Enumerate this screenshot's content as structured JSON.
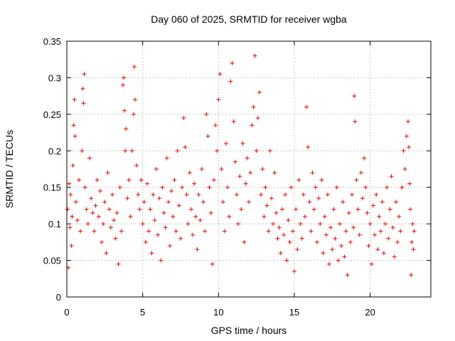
{
  "chart_data": {
    "type": "scatter",
    "title": "Day 060 of 2025, SRMTID for receiver wgba",
    "xlabel": "GPS time / hours",
    "ylabel": "SRMTID / TECUs",
    "xlim": [
      0,
      24
    ],
    "ylim": [
      0,
      0.35
    ],
    "x_ticks": [
      0,
      5,
      10,
      15,
      20
    ],
    "x_tick_labels": [
      "0",
      "5",
      "10",
      "15",
      "20"
    ],
    "y_ticks": [
      0,
      0.05,
      0.1,
      0.15,
      0.2,
      0.25,
      0.3,
      0.35
    ],
    "y_tick_labels": [
      "0",
      "0.05",
      "0.1",
      "0.15",
      "0.2",
      "0.25",
      "0.3",
      "0.35"
    ],
    "grid": true,
    "marker": "+",
    "color": "#ff0000",
    "series": [
      {
        "name": "SRMTID",
        "points": [
          [
            0.05,
            0.12
          ],
          [
            0.1,
            0.04
          ],
          [
            0.15,
            0.155
          ],
          [
            0.2,
            0.095
          ],
          [
            0.25,
            0.14
          ],
          [
            0.3,
            0.07
          ],
          [
            0.35,
            0.11
          ],
          [
            0.4,
            0.18
          ],
          [
            0.45,
            0.235
          ],
          [
            0.5,
            0.27
          ],
          [
            0.55,
            0.22
          ],
          [
            0.6,
            0.13
          ],
          [
            0.7,
            0.105
          ],
          [
            0.8,
            0.16
          ],
          [
            0.9,
            0.09
          ],
          [
            1.0,
            0.2
          ],
          [
            1.05,
            0.285
          ],
          [
            1.1,
            0.265
          ],
          [
            1.15,
            0.305
          ],
          [
            1.2,
            0.15
          ],
          [
            1.3,
            0.12
          ],
          [
            1.4,
            0.1
          ],
          [
            1.5,
            0.19
          ],
          [
            1.6,
            0.135
          ],
          [
            1.7,
            0.115
          ],
          [
            1.8,
            0.09
          ],
          [
            1.9,
            0.125
          ],
          [
            2.0,
            0.16
          ],
          [
            2.1,
            0.11
          ],
          [
            2.2,
            0.145
          ],
          [
            2.3,
            0.075
          ],
          [
            2.4,
            0.1
          ],
          [
            2.5,
            0.13
          ],
          [
            2.6,
            0.06
          ],
          [
            2.7,
            0.17
          ],
          [
            2.8,
            0.12
          ],
          [
            2.9,
            0.095
          ],
          [
            3.0,
            0.14
          ],
          [
            3.1,
            0.105
          ],
          [
            3.2,
            0.08
          ],
          [
            3.3,
            0.115
          ],
          [
            3.4,
            0.045
          ],
          [
            3.5,
            0.15
          ],
          [
            3.6,
            0.09
          ],
          [
            3.7,
            0.29
          ],
          [
            3.75,
            0.3
          ],
          [
            3.8,
            0.255
          ],
          [
            3.85,
            0.2
          ],
          [
            3.9,
            0.23
          ],
          [
            4.0,
            0.135
          ],
          [
            4.1,
            0.16
          ],
          [
            4.2,
            0.11
          ],
          [
            4.3,
            0.2
          ],
          [
            4.4,
            0.25
          ],
          [
            4.45,
            0.315
          ],
          [
            4.5,
            0.27
          ],
          [
            4.6,
            0.18
          ],
          [
            4.7,
            0.14
          ],
          [
            4.8,
            0.12
          ],
          [
            4.9,
            0.16
          ],
          [
            5.0,
            0.1
          ],
          [
            5.1,
            0.13
          ],
          [
            5.2,
            0.075
          ],
          [
            5.3,
            0.155
          ],
          [
            5.4,
            0.09
          ],
          [
            5.5,
            0.12
          ],
          [
            5.6,
            0.06
          ],
          [
            5.7,
            0.14
          ],
          [
            5.8,
            0.105
          ],
          [
            5.9,
            0.175
          ],
          [
            6.0,
            0.085
          ],
          [
            6.1,
            0.135
          ],
          [
            6.2,
            0.05
          ],
          [
            6.3,
            0.15
          ],
          [
            6.4,
            0.115
          ],
          [
            6.5,
            0.095
          ],
          [
            6.6,
            0.19
          ],
          [
            6.7,
            0.13
          ],
          [
            6.8,
            0.07
          ],
          [
            6.9,
            0.145
          ],
          [
            7.0,
            0.11
          ],
          [
            7.1,
            0.16
          ],
          [
            7.2,
            0.09
          ],
          [
            7.3,
            0.2
          ],
          [
            7.4,
            0.125
          ],
          [
            7.5,
            0.08
          ],
          [
            7.6,
            0.15
          ],
          [
            7.7,
            0.245
          ],
          [
            7.8,
            0.205
          ],
          [
            7.9,
            0.14
          ],
          [
            8.0,
            0.1
          ],
          [
            8.1,
            0.17
          ],
          [
            8.2,
            0.12
          ],
          [
            8.3,
            0.085
          ],
          [
            8.4,
            0.155
          ],
          [
            8.5,
            0.11
          ],
          [
            8.6,
            0.065
          ],
          [
            8.7,
            0.14
          ],
          [
            8.8,
            0.105
          ],
          [
            8.9,
            0.175
          ],
          [
            9.0,
            0.13
          ],
          [
            9.1,
            0.09
          ],
          [
            9.2,
            0.25
          ],
          [
            9.3,
            0.22
          ],
          [
            9.4,
            0.15
          ],
          [
            9.5,
            0.115
          ],
          [
            9.6,
            0.045
          ],
          [
            9.7,
            0.16
          ],
          [
            9.8,
            0.235
          ],
          [
            9.9,
            0.2
          ],
          [
            10.0,
            0.27
          ],
          [
            10.1,
            0.305
          ],
          [
            10.2,
            0.175
          ],
          [
            10.3,
            0.13
          ],
          [
            10.4,
            0.09
          ],
          [
            10.5,
            0.21
          ],
          [
            10.6,
            0.15
          ],
          [
            10.7,
            0.11
          ],
          [
            10.8,
            0.295
          ],
          [
            10.9,
            0.32
          ],
          [
            11.0,
            0.24
          ],
          [
            11.1,
            0.185
          ],
          [
            11.2,
            0.14
          ],
          [
            11.3,
            0.1
          ],
          [
            11.4,
            0.165
          ],
          [
            11.5,
            0.12
          ],
          [
            11.6,
            0.21
          ],
          [
            11.7,
            0.075
          ],
          [
            11.8,
            0.155
          ],
          [
            11.9,
            0.19
          ],
          [
            12.0,
            0.13
          ],
          [
            12.1,
            0.17
          ],
          [
            12.2,
            0.235
          ],
          [
            12.3,
            0.26
          ],
          [
            12.4,
            0.33
          ],
          [
            12.5,
            0.2
          ],
          [
            12.6,
            0.245
          ],
          [
            12.7,
            0.28
          ],
          [
            12.8,
            0.14
          ],
          [
            12.9,
            0.175
          ],
          [
            13.0,
            0.11
          ],
          [
            13.1,
            0.15
          ],
          [
            13.2,
            0.125
          ],
          [
            13.3,
            0.09
          ],
          [
            13.4,
            0.2
          ],
          [
            13.5,
            0.135
          ],
          [
            13.6,
            0.1
          ],
          [
            13.7,
            0.17
          ],
          [
            13.8,
            0.115
          ],
          [
            13.9,
            0.08
          ],
          [
            14.0,
            0.095
          ],
          [
            14.1,
            0.06
          ],
          [
            14.2,
            0.12
          ],
          [
            14.3,
            0.085
          ],
          [
            14.4,
            0.14
          ],
          [
            14.5,
            0.05
          ],
          [
            14.6,
            0.105
          ],
          [
            14.7,
            0.075
          ],
          [
            14.8,
            0.15
          ],
          [
            14.9,
            0.09
          ],
          [
            15.0,
            0.035
          ],
          [
            15.1,
            0.12
          ],
          [
            15.2,
            0.065
          ],
          [
            15.3,
            0.16
          ],
          [
            15.4,
            0.1
          ],
          [
            15.5,
            0.08
          ],
          [
            15.6,
            0.14
          ],
          [
            15.7,
            0.11
          ],
          [
            15.8,
            0.26
          ],
          [
            15.9,
            0.205
          ],
          [
            16.0,
            0.13
          ],
          [
            16.1,
            0.09
          ],
          [
            16.2,
            0.17
          ],
          [
            16.3,
            0.12
          ],
          [
            16.4,
            0.15
          ],
          [
            16.5,
            0.075
          ],
          [
            16.6,
            0.135
          ],
          [
            16.7,
            0.1
          ],
          [
            16.8,
            0.16
          ],
          [
            16.9,
            0.06
          ],
          [
            17.0,
            0.11
          ],
          [
            17.1,
            0.085
          ],
          [
            17.2,
            0.14
          ],
          [
            17.3,
            0.045
          ],
          [
            17.4,
            0.095
          ],
          [
            17.5,
            0.065
          ],
          [
            17.6,
            0.12
          ],
          [
            17.7,
            0.08
          ],
          [
            17.8,
            0.15
          ],
          [
            17.9,
            0.05
          ],
          [
            18.0,
            0.1
          ],
          [
            18.1,
            0.07
          ],
          [
            18.2,
            0.13
          ],
          [
            18.3,
            0.055
          ],
          [
            18.4,
            0.09
          ],
          [
            18.5,
            0.03
          ],
          [
            18.6,
            0.115
          ],
          [
            18.7,
            0.075
          ],
          [
            18.8,
            0.14
          ],
          [
            18.9,
            0.095
          ],
          [
            18.95,
            0.275
          ],
          [
            19.0,
            0.24
          ],
          [
            19.1,
            0.16
          ],
          [
            19.2,
            0.12
          ],
          [
            19.3,
            0.085
          ],
          [
            19.4,
            0.17
          ],
          [
            19.5,
            0.135
          ],
          [
            19.6,
            0.19
          ],
          [
            19.7,
            0.15
          ],
          [
            19.8,
            0.115
          ],
          [
            19.9,
            0.07
          ],
          [
            20.0,
            0.1
          ],
          [
            20.1,
            0.045
          ],
          [
            20.2,
            0.125
          ],
          [
            20.3,
            0.085
          ],
          [
            20.4,
            0.14
          ],
          [
            20.5,
            0.065
          ],
          [
            20.6,
            0.11
          ],
          [
            20.7,
            0.09
          ],
          [
            20.8,
            0.13
          ],
          [
            20.9,
            0.06
          ],
          [
            21.0,
            0.1
          ],
          [
            21.1,
            0.15
          ],
          [
            21.2,
            0.08
          ],
          [
            21.3,
            0.12
          ],
          [
            21.4,
            0.165
          ],
          [
            21.5,
            0.095
          ],
          [
            21.6,
            0.055
          ],
          [
            21.7,
            0.13
          ],
          [
            21.8,
            0.075
          ],
          [
            21.9,
            0.11
          ],
          [
            22.0,
            0.09
          ],
          [
            22.1,
            0.15
          ],
          [
            22.2,
            0.2
          ],
          [
            22.3,
            0.175
          ],
          [
            22.4,
            0.22
          ],
          [
            22.5,
            0.24
          ],
          [
            22.55,
            0.205
          ],
          [
            22.6,
            0.155
          ],
          [
            22.65,
            0.12
          ],
          [
            22.7,
            0.03
          ],
          [
            22.75,
            0.075
          ],
          [
            22.8,
            0.1
          ],
          [
            22.85,
            0.065
          ],
          [
            22.9,
            0.09
          ]
        ]
      }
    ]
  }
}
